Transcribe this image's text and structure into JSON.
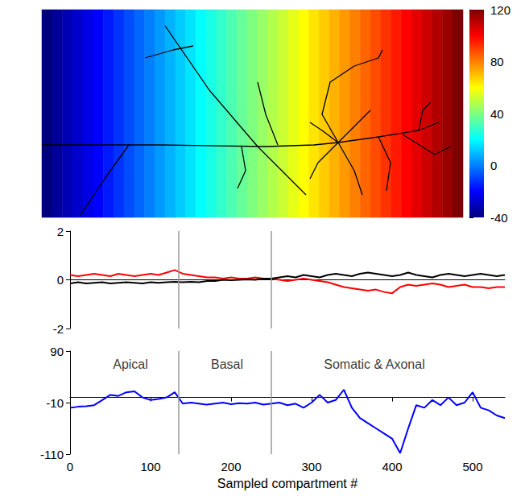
{
  "chart_data": [
    {
      "type": "heatmap",
      "field": {
        "values": [
          -40,
          -36,
          -32,
          -28,
          -24,
          -20,
          -16,
          -12,
          -8,
          -4,
          0,
          4,
          8,
          12,
          16,
          20,
          24,
          28,
          32,
          36,
          40,
          44,
          48,
          52,
          56,
          60,
          64,
          68,
          72,
          76,
          80,
          84,
          88,
          92,
          96,
          100,
          104,
          108,
          112,
          116,
          120
        ]
      },
      "colorbar": {
        "range": [
          -40,
          120
        ],
        "ticks": [
          -40,
          0,
          40,
          80,
          120
        ]
      },
      "paths": [
        [
          [
            0,
            90
          ],
          [
            148,
            90
          ],
          [
            278,
            88
          ],
          [
            338,
            90
          ],
          [
            368,
            93
          ]
        ],
        [
          [
            368,
            93
          ],
          [
            418,
            100
          ],
          [
            468,
            108
          ],
          [
            493,
            118
          ]
        ],
        [
          [
            448,
            103
          ],
          [
            488,
            78
          ],
          [
            508,
            88
          ]
        ],
        [
          [
            153,
            238
          ],
          [
            208,
            158
          ],
          [
            268,
            88
          ],
          [
            328,
            28
          ]
        ],
        [
          [
            128,
            198
          ],
          [
            163,
            208
          ],
          [
            188,
            213
          ]
        ],
        [
          [
            48,
            3
          ],
          [
            78,
            48
          ],
          [
            108,
            90
          ]
        ],
        [
          [
            268,
            168
          ],
          [
            278,
            128
          ],
          [
            293,
            90
          ]
        ],
        [
          [
            248,
            88
          ],
          [
            253,
            58
          ],
          [
            243,
            36
          ]
        ],
        [
          [
            368,
            93
          ],
          [
            348,
            128
          ],
          [
            358,
            168
          ],
          [
            388,
            188
          ],
          [
            418,
            198
          ],
          [
            423,
            208
          ]
        ],
        [
          [
            368,
            93
          ],
          [
            343,
            68
          ],
          [
            333,
            48
          ]
        ],
        [
          [
            368,
            93
          ],
          [
            388,
            58
          ],
          [
            398,
            28
          ]
        ],
        [
          [
            368,
            93
          ],
          [
            393,
            118
          ],
          [
            408,
            133
          ]
        ],
        [
          [
            368,
            93
          ],
          [
            348,
            108
          ],
          [
            333,
            118
          ]
        ],
        [
          [
            418,
            100
          ],
          [
            433,
            68
          ],
          [
            428,
            33
          ]
        ],
        [
          [
            468,
            108
          ],
          [
            473,
            133
          ],
          [
            483,
            143
          ]
        ]
      ],
      "color": "#000000",
      "xlim": [
        0,
        523
      ],
      "ylim": [
        0,
        258
      ],
      "tick_labels": false
    },
    {
      "type": "line",
      "x": [
        0,
        10,
        20,
        30,
        40,
        50,
        60,
        70,
        80,
        90,
        100,
        110,
        120,
        130,
        140,
        150,
        160,
        170,
        180,
        190,
        200,
        210,
        220,
        230,
        240,
        250,
        260,
        270,
        280,
        290,
        300,
        310,
        320,
        330,
        340,
        350,
        360,
        370,
        380,
        390,
        400,
        410,
        420,
        430,
        440,
        450,
        460,
        470,
        480,
        490,
        500,
        510,
        520,
        530,
        540
      ],
      "series": [
        {
          "color": "#ff0000",
          "values": [
            0.2,
            0.15,
            0.2,
            0.25,
            0.2,
            0.15,
            0.25,
            0.2,
            0.15,
            0.2,
            0.25,
            0.2,
            0.3,
            0.4,
            0.25,
            0.2,
            0.15,
            0.1,
            0.1,
            0.05,
            0.1,
            0.05,
            0.05,
            0.1,
            0.05,
            0.05,
            0,
            -0.05,
            0,
            0.05,
            0,
            -0.05,
            -0.1,
            -0.2,
            -0.3,
            -0.35,
            -0.4,
            -0.45,
            -0.4,
            -0.5,
            -0.55,
            -0.3,
            -0.2,
            -0.25,
            -0.2,
            -0.15,
            -0.2,
            -0.3,
            -0.25,
            -0.2,
            -0.3,
            -0.3,
            -0.35,
            -0.3,
            -0.3
          ]
        },
        {
          "color": "#000000",
          "values": [
            -0.15,
            -0.1,
            -0.15,
            -0.12,
            -0.1,
            -0.15,
            -0.12,
            -0.1,
            -0.12,
            -0.15,
            -0.1,
            -0.12,
            -0.1,
            -0.08,
            -0.1,
            -0.08,
            -0.1,
            -0.05,
            -0.05,
            0,
            -0.02,
            0,
            0.02,
            0,
            0.05,
            0.05,
            0.1,
            0.15,
            0.1,
            0.2,
            0.15,
            0.1,
            0.2,
            0.25,
            0.2,
            0.15,
            0.25,
            0.3,
            0.25,
            0.2,
            0.15,
            0.2,
            0.3,
            0.2,
            0.15,
            0.1,
            0.2,
            0.25,
            0.2,
            0.15,
            0.2,
            0.25,
            0.2,
            0.15,
            0.2
          ]
        }
      ],
      "dividers": [
        135,
        250
      ],
      "xlim": [
        0,
        540
      ],
      "ylim": [
        -2,
        2
      ],
      "yticks": [
        -2,
        0,
        2
      ],
      "tick_labels": "y"
    },
    {
      "type": "line",
      "x": [
        0,
        10,
        20,
        30,
        40,
        50,
        60,
        70,
        80,
        90,
        100,
        110,
        120,
        130,
        140,
        150,
        160,
        170,
        180,
        190,
        200,
        210,
        220,
        230,
        240,
        250,
        260,
        270,
        280,
        290,
        300,
        310,
        320,
        330,
        340,
        350,
        360,
        370,
        380,
        390,
        400,
        410,
        420,
        430,
        440,
        450,
        460,
        470,
        480,
        490,
        500,
        510,
        520,
        530,
        540
      ],
      "series": [
        {
          "color": "#0000ff",
          "values": [
            -20,
            -18,
            -17,
            -15,
            -5,
            5,
            3,
            10,
            12,
            0,
            -5,
            -3,
            0,
            10,
            -12,
            -10,
            -12,
            -14,
            -12,
            -10,
            -13,
            -11,
            -12,
            -10,
            -14,
            -12,
            -10,
            -15,
            -12,
            -20,
            -10,
            5,
            -10,
            -5,
            15,
            -20,
            -40,
            -50,
            -60,
            -70,
            -80,
            -108,
            -60,
            -15,
            -20,
            -5,
            -15,
            0,
            -15,
            -10,
            10,
            -20,
            -25,
            -35,
            -40
          ]
        }
      ],
      "dividers": [
        135,
        250
      ],
      "annotations": [
        {
          "text": "Apical",
          "x": 75,
          "y": 65
        },
        {
          "text": "Basal",
          "x": 195,
          "y": 65
        },
        {
          "text": "Somatic & Axonal",
          "x": 378,
          "y": 65
        }
      ],
      "xlabel": "Sampled compartment #",
      "xlim": [
        0,
        540
      ],
      "xticks": [
        0,
        100,
        200,
        300,
        400,
        500
      ],
      "ylim": [
        -110,
        90
      ],
      "yticks": [
        -110,
        -10,
        90
      ]
    }
  ]
}
